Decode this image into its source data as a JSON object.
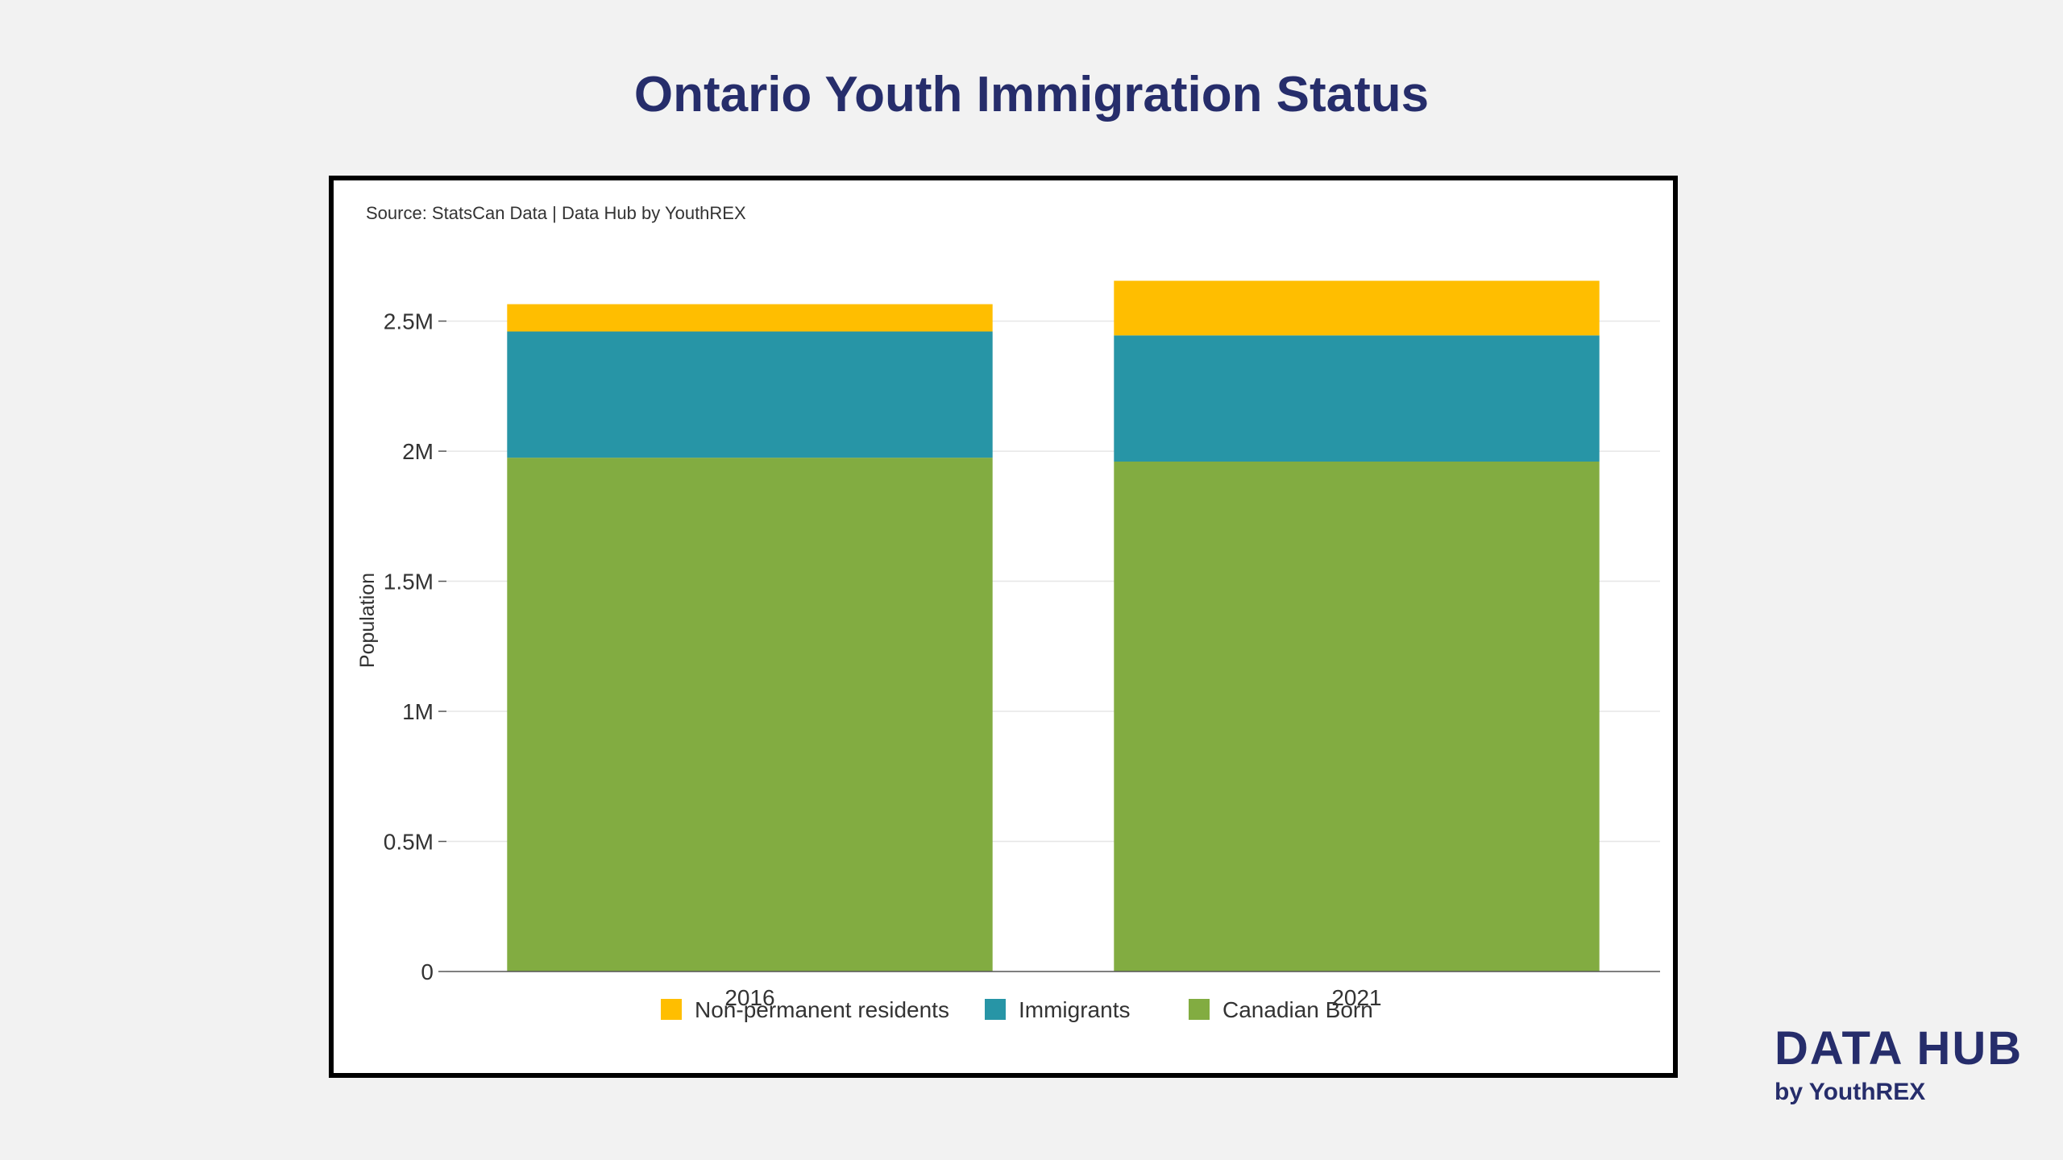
{
  "page": {
    "title": "Ontario Youth Immigration Status"
  },
  "brand": {
    "name": "DATA HUB",
    "tagline": "by YouthREX"
  },
  "chart_data": {
    "type": "bar",
    "stacked": true,
    "source_note": "Source: StatsCan Data | Data Hub by YouthREX",
    "title": "",
    "xlabel": "",
    "ylabel": "Population",
    "categories": [
      "2016",
      "2021"
    ],
    "ylim": [
      0,
      2700000
    ],
    "yticks": [
      0,
      500000,
      1000000,
      1500000,
      2000000,
      2500000
    ],
    "ytick_labels": [
      "0",
      "0.5M",
      "1M",
      "1.5M",
      "2M",
      "2.5M"
    ],
    "grid": true,
    "legend_position": "bottom",
    "series": [
      {
        "name": "Canadian Born",
        "color": "#82ac41",
        "values": [
          1975000,
          1960000
        ]
      },
      {
        "name": "Immigrants",
        "color": "#2795a6",
        "values": [
          485000,
          485000
        ]
      },
      {
        "name": "Non-permanent residents",
        "color": "#ffbe00",
        "values": [
          105000,
          210000
        ]
      }
    ],
    "legend_order": [
      "Non-permanent residents",
      "Immigrants",
      "Canadian Born"
    ]
  }
}
